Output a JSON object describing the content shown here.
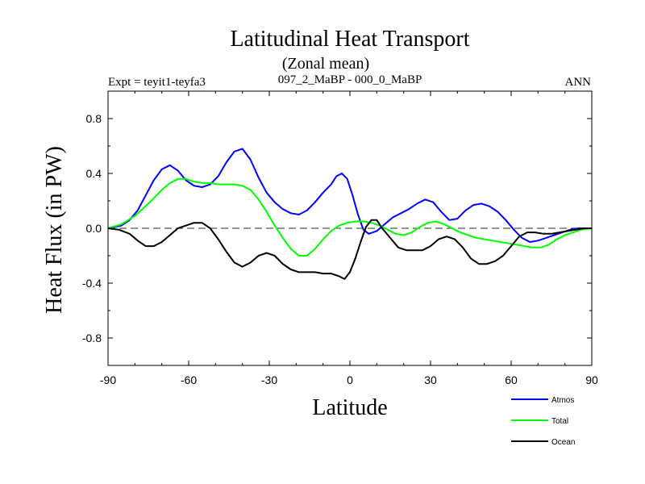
{
  "chart_data": {
    "type": "line",
    "title": "Latitudinal Heat Transport",
    "subtitle": "(Zonal mean)",
    "left_label": "Expt = teyit1-teyfa3",
    "center_label": "097_2_MaBP - 000_0_MaBP",
    "right_label": "ANN",
    "xlabel": "Latitude",
    "ylabel": "Heat Flux (in PW)",
    "xlim": [
      -90,
      90
    ],
    "ylim": [
      -1.0,
      1.0
    ],
    "xticks": [
      -90,
      -60,
      -30,
      0,
      30,
      60,
      90
    ],
    "xtick_labels": [
      "-90",
      "-60",
      "-30",
      "0",
      "30",
      "60",
      "90"
    ],
    "yticks": [
      -0.8,
      -0.4,
      0.0,
      0.4,
      0.8
    ],
    "ytick_labels": [
      "-0.8",
      "-0.4",
      "0.0",
      "0.4",
      "0.8"
    ],
    "zero_line": true,
    "series": [
      {
        "name": "Atmos",
        "color": "#0000ff",
        "x": [
          -90,
          -85,
          -82,
          -79,
          -76,
          -73,
          -70,
          -67,
          -64,
          -61,
          -58,
          -55,
          -52,
          -49,
          -46,
          -43,
          -40,
          -37,
          -34,
          -31,
          -28,
          -25,
          -22,
          -19,
          -16,
          -13,
          -10,
          -7,
          -5,
          -3,
          -1,
          1,
          3,
          5,
          7,
          10,
          13,
          16,
          19,
          22,
          25,
          28,
          31,
          34,
          37,
          40,
          43,
          46,
          49,
          52,
          55,
          58,
          61,
          64,
          67,
          70,
          73,
          76,
          79,
          82,
          85,
          88,
          90
        ],
        "values": [
          0.0,
          0.02,
          0.06,
          0.13,
          0.24,
          0.35,
          0.43,
          0.46,
          0.42,
          0.35,
          0.31,
          0.3,
          0.32,
          0.38,
          0.48,
          0.56,
          0.58,
          0.5,
          0.37,
          0.26,
          0.19,
          0.14,
          0.11,
          0.1,
          0.13,
          0.19,
          0.26,
          0.32,
          0.38,
          0.4,
          0.36,
          0.24,
          0.1,
          -0.01,
          -0.04,
          -0.02,
          0.03,
          0.08,
          0.11,
          0.14,
          0.18,
          0.21,
          0.19,
          0.12,
          0.06,
          0.07,
          0.13,
          0.17,
          0.18,
          0.16,
          0.12,
          0.06,
          -0.01,
          -0.07,
          -0.1,
          -0.09,
          -0.07,
          -0.05,
          -0.03,
          -0.01,
          0.0,
          0.0,
          0.0
        ]
      },
      {
        "name": "Total",
        "color": "#00ff00",
        "x": [
          -90,
          -85,
          -80,
          -75,
          -70,
          -67,
          -64,
          -61,
          -58,
          -55,
          -52,
          -49,
          -46,
          -43,
          -40,
          -37,
          -34,
          -31,
          -28,
          -25,
          -22,
          -19,
          -16,
          -13,
          -10,
          -7,
          -4,
          -1,
          2,
          5,
          8,
          11,
          14,
          17,
          20,
          23,
          26,
          29,
          32,
          35,
          38,
          41,
          44,
          47,
          50,
          53,
          56,
          59,
          62,
          65,
          68,
          71,
          74,
          77,
          80,
          83,
          86,
          90
        ],
        "values": [
          0.0,
          0.03,
          0.09,
          0.18,
          0.28,
          0.33,
          0.36,
          0.36,
          0.34,
          0.33,
          0.33,
          0.32,
          0.32,
          0.32,
          0.31,
          0.28,
          0.21,
          0.12,
          0.02,
          -0.07,
          -0.15,
          -0.2,
          -0.2,
          -0.15,
          -0.08,
          -0.02,
          0.02,
          0.04,
          0.05,
          0.05,
          0.04,
          0.02,
          -0.01,
          -0.04,
          -0.05,
          -0.03,
          0.01,
          0.04,
          0.05,
          0.03,
          0.0,
          -0.03,
          -0.05,
          -0.07,
          -0.08,
          -0.09,
          -0.1,
          -0.11,
          -0.12,
          -0.13,
          -0.14,
          -0.14,
          -0.12,
          -0.08,
          -0.05,
          -0.03,
          -0.01,
          0.0
        ]
      },
      {
        "name": "Ocean",
        "color": "#000000",
        "x": [
          -90,
          -86,
          -82,
          -79,
          -76,
          -73,
          -70,
          -67,
          -64,
          -61,
          -58,
          -55,
          -52,
          -49,
          -46,
          -43,
          -40,
          -37,
          -34,
          -31,
          -28,
          -25,
          -22,
          -19,
          -16,
          -13,
          -10,
          -7,
          -4,
          -2,
          0,
          2,
          4,
          6,
          8,
          10,
          12,
          15,
          18,
          21,
          24,
          27,
          30,
          33,
          36,
          39,
          42,
          45,
          48,
          51,
          54,
          57,
          60,
          63,
          66,
          69,
          72,
          75,
          78,
          81,
          84,
          87,
          90
        ],
        "values": [
          0.0,
          -0.01,
          -0.04,
          -0.09,
          -0.13,
          -0.13,
          -0.1,
          -0.05,
          0.0,
          0.02,
          0.04,
          0.04,
          0.0,
          -0.08,
          -0.17,
          -0.25,
          -0.28,
          -0.25,
          -0.2,
          -0.18,
          -0.2,
          -0.26,
          -0.3,
          -0.32,
          -0.32,
          -0.32,
          -0.33,
          -0.33,
          -0.35,
          -0.37,
          -0.32,
          -0.22,
          -0.1,
          0.01,
          0.06,
          0.06,
          0.0,
          -0.07,
          -0.14,
          -0.16,
          -0.16,
          -0.16,
          -0.13,
          -0.08,
          -0.06,
          -0.08,
          -0.14,
          -0.22,
          -0.26,
          -0.26,
          -0.24,
          -0.2,
          -0.13,
          -0.06,
          -0.03,
          -0.03,
          -0.04,
          -0.04,
          -0.03,
          -0.02,
          -0.01,
          0.0,
          0.0
        ]
      }
    ],
    "legend": {
      "position": "bottom-right",
      "entries": [
        "Atmos",
        "Total",
        "Ocean"
      ]
    }
  }
}
